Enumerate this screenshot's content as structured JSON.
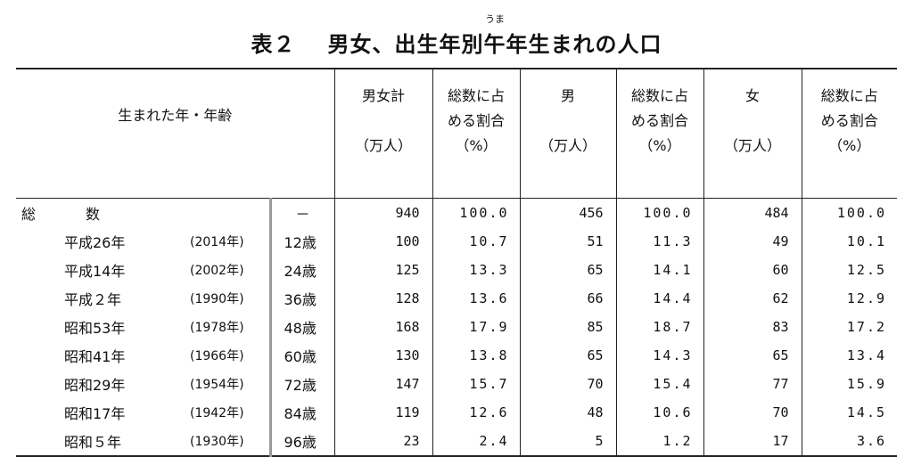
{
  "title": {
    "number": "表２",
    "before": "男女、出生年別",
    "ruby_base": "午",
    "ruby_reading": "うま",
    "after": "年生まれの人口"
  },
  "headers": {
    "birth_year_age": "生まれた年・年齢",
    "total": [
      "男女計",
      "（万人）"
    ],
    "total_pct": [
      "総数に占",
      "める割合",
      "（%）"
    ],
    "male": [
      "男",
      "（万人）"
    ],
    "male_pct": [
      "総数に占",
      "める割合",
      "（%）"
    ],
    "female": [
      "女",
      "（万人）"
    ],
    "female_pct": [
      "総数に占",
      "める割合",
      "（%）"
    ]
  },
  "total_row": {
    "label": "総数",
    "age": "－",
    "total": "940",
    "total_pct": "100.0",
    "male": "456",
    "male_pct": "100.0",
    "female": "484",
    "female_pct": "100.0"
  },
  "rows": [
    {
      "era": "平成26年",
      "western": "(2014年)",
      "age": "12歳",
      "total": "100",
      "total_pct": "10.7",
      "male": "51",
      "male_pct": "11.3",
      "female": "49",
      "female_pct": "10.1"
    },
    {
      "era": "平成14年",
      "western": "(2002年)",
      "age": "24歳",
      "total": "125",
      "total_pct": "13.3",
      "male": "65",
      "male_pct": "14.1",
      "female": "60",
      "female_pct": "12.5"
    },
    {
      "era": "平成２年",
      "western": "(1990年)",
      "age": "36歳",
      "total": "128",
      "total_pct": "13.6",
      "male": "66",
      "male_pct": "14.4",
      "female": "62",
      "female_pct": "12.9"
    },
    {
      "era": "昭和53年",
      "western": "(1978年)",
      "age": "48歳",
      "total": "168",
      "total_pct": "17.9",
      "male": "85",
      "male_pct": "18.7",
      "female": "83",
      "female_pct": "17.2"
    },
    {
      "era": "昭和41年",
      "western": "(1966年)",
      "age": "60歳",
      "total": "130",
      "total_pct": "13.8",
      "male": "65",
      "male_pct": "14.3",
      "female": "65",
      "female_pct": "13.4"
    },
    {
      "era": "昭和29年",
      "western": "(1954年)",
      "age": "72歳",
      "total": "147",
      "total_pct": "15.7",
      "male": "70",
      "male_pct": "15.4",
      "female": "77",
      "female_pct": "15.9"
    },
    {
      "era": "昭和17年",
      "western": "(1942年)",
      "age": "84歳",
      "total": "119",
      "total_pct": "12.6",
      "male": "48",
      "male_pct": "10.6",
      "female": "70",
      "female_pct": "14.5"
    },
    {
      "era": "昭和５年",
      "western": "(1930年)",
      "age": "96歳",
      "total": "23",
      "total_pct": "2.4",
      "male": "5",
      "male_pct": "1.2",
      "female": "17",
      "female_pct": "3.6"
    }
  ]
}
